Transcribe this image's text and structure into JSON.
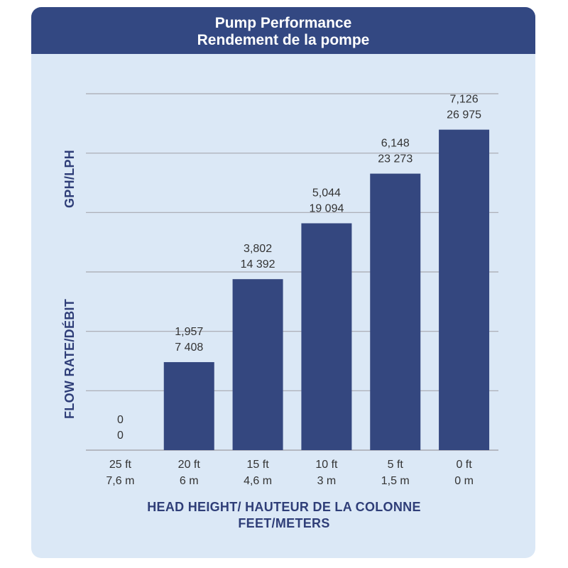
{
  "chart_data": {
    "type": "bar",
    "title": "Pump Performance",
    "subtitle": "Rendement de la pompe",
    "ylabel": "FLOW RATE/DÉBIT",
    "ylabel_units": "GPH/LPH",
    "xlabel": "HEAD HEIGHT/ HAUTEUR DE LA COLONNE",
    "xlabel_units": "FEET/METERS",
    "categories": [
      {
        "feet": "25 ft",
        "meters": "7,6 m"
      },
      {
        "feet": "20 ft",
        "meters": "6 m"
      },
      {
        "feet": "15 ft",
        "meters": "4,6 m"
      },
      {
        "feet": "10 ft",
        "meters": "3 m"
      },
      {
        "feet": "5 ft",
        "meters": "1,5 m"
      },
      {
        "feet": "0 ft",
        "meters": "0 m"
      }
    ],
    "series": [
      {
        "name": "GPH",
        "values": [
          0,
          1957,
          3802,
          5044,
          6148,
          7126
        ],
        "labels": [
          "0",
          "1,957",
          "3,802",
          "5,044",
          "6,148",
          "7,126"
        ]
      },
      {
        "name": "LPH",
        "values": [
          0,
          7408,
          14392,
          19094,
          23273,
          26975
        ],
        "labels": [
          "0",
          "7 408",
          "14 392",
          "19 094",
          "23 273",
          "26 975"
        ]
      }
    ],
    "ylim": [
      0,
      30000
    ],
    "grid": true,
    "colors": {
      "bar": "#34477f",
      "header": "#334882",
      "panel": "#dbe8f6",
      "grid": "#a8a8b0",
      "text": "#333333",
      "axis_title": "#2f3e78"
    }
  }
}
